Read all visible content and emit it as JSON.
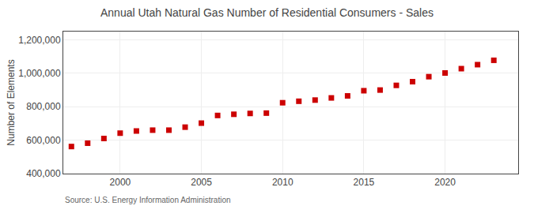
{
  "chart_data": {
    "type": "scatter",
    "title": "Annual Utah Natural Gas Number of Residential Consumers - Sales",
    "ylabel": "Number of Elements",
    "annotations": [
      "Source: U.S. Energy Information Administration"
    ],
    "x": [
      1997,
      1998,
      1999,
      2000,
      2001,
      2002,
      2003,
      2004,
      2005,
      2006,
      2007,
      2008,
      2009,
      2010,
      2011,
      2012,
      2013,
      2014,
      2015,
      2016,
      2017,
      2018,
      2019,
      2020,
      2021,
      2022,
      2023
    ],
    "values": [
      562000,
      582000,
      610000,
      642000,
      655000,
      660000,
      660000,
      678000,
      702000,
      748000,
      755000,
      760000,
      762000,
      824000,
      833000,
      840000,
      853000,
      865000,
      896000,
      900000,
      928000,
      950000,
      980000,
      1002000,
      1028000,
      1052000,
      1078000
    ],
    "color": "#cc0000",
    "marker": "square",
    "xlim": [
      1996.5,
      2024.5
    ],
    "xticks": [
      2000,
      2005,
      2010,
      2015,
      2020
    ],
    "ylim": [
      400000,
      1250000
    ],
    "yticks": [
      {
        "value": 400000,
        "label": "400,000"
      },
      {
        "value": 600000,
        "label": "600,000"
      },
      {
        "value": 800000,
        "label": "800,000"
      },
      {
        "value": 1000000,
        "label": "1,000,000"
      },
      {
        "value": 1200000,
        "label": "1,200,000"
      }
    ],
    "grid": true
  }
}
